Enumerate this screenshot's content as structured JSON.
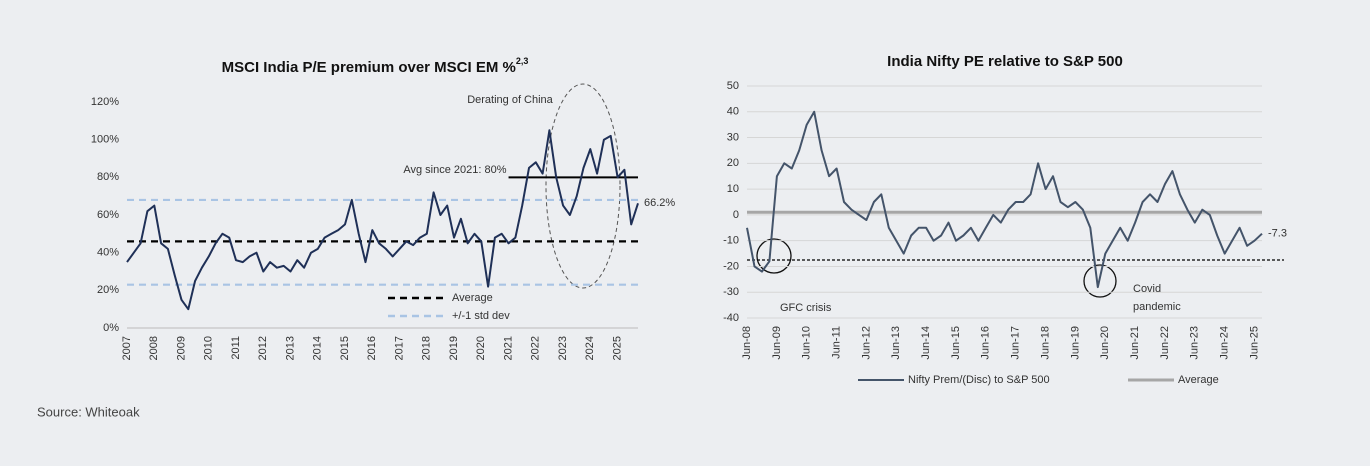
{
  "chart_data": [
    {
      "type": "line",
      "title": "MSCI India P/E premium over MSCI EM %",
      "title_sup": "2,3",
      "categories": [
        "2007",
        null,
        null,
        null,
        "2008",
        null,
        null,
        null,
        "2009",
        null,
        null,
        null,
        "2010",
        null,
        null,
        null,
        "2011",
        null,
        null,
        null,
        "2012",
        null,
        null,
        null,
        "2013",
        null,
        null,
        null,
        "2014",
        null,
        null,
        null,
        "2015",
        null,
        null,
        null,
        "2016",
        null,
        null,
        null,
        "2017",
        null,
        null,
        null,
        "2018",
        null,
        null,
        null,
        "2019",
        null,
        null,
        null,
        "2020",
        null,
        null,
        null,
        "2021",
        null,
        null,
        null,
        "2022",
        null,
        null,
        null,
        "2023",
        null,
        null,
        null,
        "2024",
        null,
        null,
        null,
        "2025",
        null,
        null,
        null
      ],
      "series": [
        {
          "name": "MSCI India P/E premium",
          "color": "#1f3057",
          "values": [
            35,
            40,
            45,
            62,
            65,
            45,
            42,
            28,
            15,
            10,
            25,
            32,
            38,
            45,
            50,
            48,
            36,
            35,
            38,
            40,
            30,
            35,
            32,
            33,
            30,
            36,
            32,
            40,
            42,
            48,
            50,
            52,
            55,
            68,
            50,
            35,
            52,
            45,
            42,
            38,
            42,
            46,
            44,
            48,
            50,
            72,
            60,
            65,
            48,
            58,
            45,
            50,
            46,
            22,
            48,
            50,
            45,
            48,
            65,
            85,
            88,
            82,
            105,
            80,
            65,
            60,
            70,
            85,
            95,
            82,
            100,
            102,
            80,
            84,
            55,
            66.2
          ],
          "value_labels": [
            null,
            null,
            null,
            null,
            null,
            null,
            null,
            null,
            null,
            null,
            null,
            null,
            null,
            null,
            null,
            null,
            null,
            null,
            null,
            null,
            null,
            null,
            null,
            null,
            null,
            null,
            null,
            null,
            null,
            null,
            null,
            null,
            null,
            null,
            null,
            null,
            null,
            null,
            null,
            null,
            null,
            null,
            null,
            null,
            null,
            null,
            null,
            null,
            null,
            null,
            null,
            null,
            null,
            null,
            null,
            null,
            null,
            null,
            null,
            null,
            null,
            null,
            null,
            null,
            null,
            null,
            null,
            null,
            null,
            null,
            null,
            null,
            null,
            null,
            null,
            "66.2%"
          ]
        }
      ],
      "reference_lines": [
        {
          "name": "Average",
          "value": 46,
          "color": "#000000",
          "dashed": true
        },
        {
          "name": "+/-1 std dev",
          "values": [
            23,
            68
          ],
          "color": "#a9c4e4",
          "dashed": true
        },
        {
          "label": "Avg since 2021: 80%",
          "value": 80,
          "from": "2021",
          "color": "#000000",
          "dashed": false
        }
      ],
      "annotations": [
        "Derating of China"
      ],
      "ylim": [
        0,
        120
      ],
      "yticks": [
        {
          "value": 0,
          "label": "0%"
        },
        {
          "value": 20,
          "label": "20%"
        },
        {
          "value": 40,
          "label": "40%"
        },
        {
          "value": 60,
          "label": "60%"
        },
        {
          "value": 80,
          "label": "80%"
        },
        {
          "value": 100,
          "label": "100%"
        },
        {
          "value": 120,
          "label": "120%"
        }
      ],
      "grid": false
    },
    {
      "type": "line",
      "title": "India Nifty PE relative to S&P 500",
      "categories": [
        "Jun-08",
        null,
        null,
        null,
        "Jun-09",
        null,
        null,
        null,
        "Jun-10",
        null,
        null,
        null,
        "Jun-11",
        null,
        null,
        null,
        "Jun-12",
        null,
        null,
        null,
        "Jun-13",
        null,
        null,
        null,
        "Jun-14",
        null,
        null,
        null,
        "Jun-15",
        null,
        null,
        null,
        "Jun-16",
        null,
        null,
        null,
        "Jun-17",
        null,
        null,
        null,
        "Jun-18",
        null,
        null,
        null,
        "Jun-19",
        null,
        null,
        null,
        "Jun-20",
        null,
        null,
        null,
        "Jun-21",
        null,
        null,
        null,
        "Jun-22",
        null,
        null,
        null,
        "Jun-23",
        null,
        null,
        null,
        "Jun-24",
        null,
        null,
        null,
        "Jun-25",
        null
      ],
      "series": [
        {
          "name": "Nifty Prem/(Disc) to S&P 500",
          "color": "#44546a",
          "values": [
            -5,
            -20,
            -22,
            -18,
            15,
            20,
            18,
            25,
            35,
            40,
            25,
            15,
            18,
            5,
            2,
            0,
            -2,
            5,
            8,
            -5,
            -10,
            -15,
            -8,
            -5,
            -5,
            -10,
            -8,
            -3,
            -10,
            -8,
            -5,
            -10,
            -5,
            0,
            -3,
            2,
            5,
            5,
            8,
            20,
            10,
            15,
            5,
            3,
            5,
            2,
            -5,
            -28,
            -15,
            -10,
            -5,
            -10,
            -3,
            5,
            8,
            5,
            12,
            17,
            8,
            2,
            -3,
            2,
            0,
            -8,
            -15,
            -10,
            -5,
            -12,
            -10,
            -7.3
          ],
          "value_labels": [
            null,
            null,
            null,
            null,
            null,
            null,
            null,
            null,
            null,
            null,
            null,
            null,
            null,
            null,
            null,
            null,
            null,
            null,
            null,
            null,
            null,
            null,
            null,
            null,
            null,
            null,
            null,
            null,
            null,
            null,
            null,
            null,
            null,
            null,
            null,
            null,
            null,
            null,
            null,
            null,
            null,
            null,
            null,
            null,
            null,
            null,
            null,
            null,
            null,
            null,
            null,
            null,
            null,
            null,
            null,
            null,
            null,
            null,
            null,
            null,
            null,
            null,
            null,
            null,
            null,
            null,
            null,
            null,
            null,
            "-7.3"
          ]
        }
      ],
      "reference_lines": [
        {
          "name": "Average",
          "value": 1,
          "color": "#a6a6a6",
          "dashed": false
        },
        {
          "value": -17.5,
          "color": "#000000",
          "dashed": true
        }
      ],
      "annotations": [
        "GFC crisis",
        "Covid",
        "pandemic"
      ],
      "ylim": [
        -40,
        50
      ],
      "yticks": [
        -40,
        -30,
        -20,
        -10,
        0,
        10,
        20,
        30,
        40,
        50
      ],
      "grid": true
    }
  ],
  "source": "Source: Whiteoak"
}
